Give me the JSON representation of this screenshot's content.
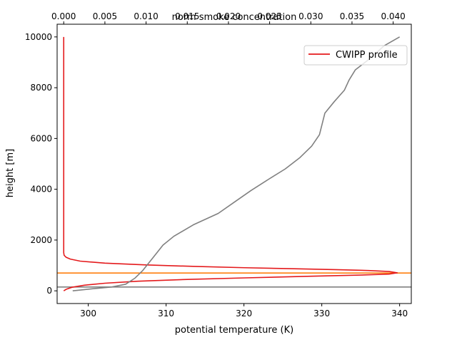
{
  "chart_data": {
    "type": "line",
    "xlabel": "potential temperature (K)",
    "x2label": "norm smoke concentration",
    "ylabel": "height [m]",
    "xlim": [
      296.0,
      341.5
    ],
    "x2lim": [
      -0.0008,
      0.0422
    ],
    "ylim": [
      -500,
      10500
    ],
    "xticks": [
      300,
      310,
      320,
      330,
      340
    ],
    "x2ticks": [
      "0.000",
      "0.005",
      "0.010",
      "0.015",
      "0.020",
      "0.025",
      "0.030",
      "0.035",
      "0.040"
    ],
    "x2tick_values": [
      0.0,
      0.005,
      0.01,
      0.015,
      0.02,
      0.025,
      0.03,
      0.035,
      0.04
    ],
    "yticks": [
      0,
      2000,
      4000,
      6000,
      8000,
      10000
    ],
    "grid": false,
    "legend": {
      "placement": "top-right",
      "entries": [
        "CWIPP profile"
      ]
    },
    "series": [
      {
        "name": "CWIPP profile",
        "axis": "top",
        "color": "#e41a1c",
        "points": [
          [
            0.0,
            10000
          ],
          [
            0.0,
            8000
          ],
          [
            0.0,
            6000
          ],
          [
            0.0,
            4000
          ],
          [
            0.0,
            2000
          ],
          [
            0.0,
            1500
          ],
          [
            5e-05,
            1400
          ],
          [
            0.0003,
            1320
          ],
          [
            0.0008,
            1250
          ],
          [
            0.002,
            1170
          ],
          [
            0.005,
            1090
          ],
          [
            0.01,
            1020
          ],
          [
            0.016,
            960
          ],
          [
            0.022,
            910
          ],
          [
            0.028,
            870
          ],
          [
            0.033,
            835
          ],
          [
            0.037,
            800
          ],
          [
            0.0395,
            760
          ],
          [
            0.0405,
            710
          ],
          [
            0.0395,
            660
          ],
          [
            0.036,
            620
          ],
          [
            0.03,
            575
          ],
          [
            0.022,
            510
          ],
          [
            0.015,
            450
          ],
          [
            0.009,
            380
          ],
          [
            0.005,
            300
          ],
          [
            0.0025,
            220
          ],
          [
            0.001,
            140
          ],
          [
            0.0003,
            60
          ],
          [
            0.0,
            0
          ]
        ]
      },
      {
        "axis": "bottom",
        "color": "#808080",
        "points": [
          [
            298.0,
            0
          ],
          [
            300.5,
            80
          ],
          [
            303.0,
            150
          ],
          [
            304.8,
            260
          ],
          [
            306.0,
            500
          ],
          [
            307.0,
            800
          ],
          [
            308.3,
            1300
          ],
          [
            309.6,
            1800
          ],
          [
            311.0,
            2150
          ],
          [
            313.5,
            2600
          ],
          [
            316.7,
            3050
          ],
          [
            318.8,
            3500
          ],
          [
            320.9,
            3950
          ],
          [
            323.2,
            4400
          ],
          [
            325.3,
            4800
          ],
          [
            327.2,
            5250
          ],
          [
            328.7,
            5700
          ],
          [
            329.7,
            6150
          ],
          [
            330.4,
            7000
          ],
          [
            331.6,
            7450
          ],
          [
            332.9,
            7900
          ],
          [
            333.5,
            8300
          ],
          [
            334.3,
            8700
          ],
          [
            336.2,
            9150
          ],
          [
            338.0,
            9650
          ],
          [
            340.0,
            10000
          ]
        ]
      }
    ],
    "hlines": [
      {
        "y": 700,
        "color": "#ff7f0e"
      },
      {
        "y": 150,
        "color": "#808080"
      }
    ]
  }
}
